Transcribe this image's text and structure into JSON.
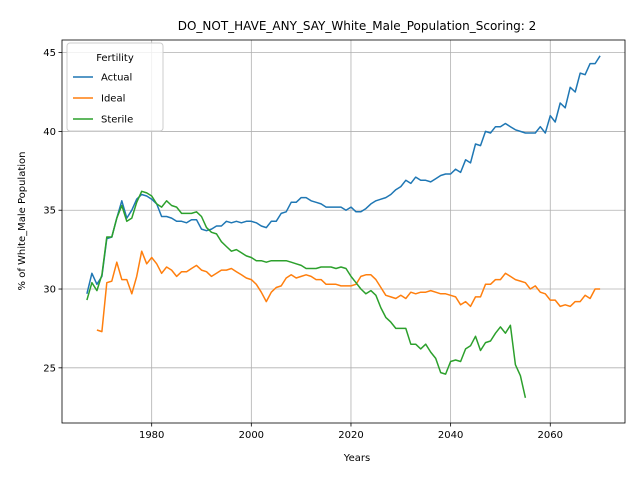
{
  "chart_data": {
    "type": "line",
    "title": "DO_NOT_HAVE_ANY_SAY_White_Male_Population_Scoring: 2",
    "xlabel": "Years",
    "ylabel": "% of White_Male Population",
    "xlim": [
      1962,
      2075
    ],
    "ylim": [
      21.5,
      45.8
    ],
    "xticks": [
      1980,
      2000,
      2020,
      2040,
      2060
    ],
    "yticks": [
      25,
      30,
      35,
      40,
      45
    ],
    "grid": true,
    "legend": {
      "title": "Fertility",
      "position": "top-left"
    },
    "series": [
      {
        "name": "Actual",
        "color": "#1f77b4",
        "points": [
          [
            1967,
            29.7
          ],
          [
            1968,
            31.0
          ],
          [
            1969,
            30.3
          ],
          [
            1970,
            30.8
          ],
          [
            1971,
            33.2
          ],
          [
            1972,
            33.3
          ],
          [
            1973,
            34.5
          ],
          [
            1974,
            35.6
          ],
          [
            1975,
            34.5
          ],
          [
            1976,
            35.0
          ],
          [
            1977,
            35.7
          ],
          [
            1978,
            36.0
          ],
          [
            1979,
            35.9
          ],
          [
            1980,
            35.7
          ],
          [
            1981,
            35.4
          ],
          [
            1982,
            34.6
          ],
          [
            1983,
            34.6
          ],
          [
            1984,
            34.5
          ],
          [
            1985,
            34.3
          ],
          [
            1986,
            34.3
          ],
          [
            1987,
            34.2
          ],
          [
            1988,
            34.4
          ],
          [
            1989,
            34.4
          ],
          [
            1990,
            33.8
          ],
          [
            1991,
            33.7
          ],
          [
            1992,
            33.8
          ],
          [
            1993,
            34.0
          ],
          [
            1994,
            34.0
          ],
          [
            1995,
            34.3
          ],
          [
            1996,
            34.2
          ],
          [
            1997,
            34.3
          ],
          [
            1998,
            34.2
          ],
          [
            1999,
            34.3
          ],
          [
            2000,
            34.3
          ],
          [
            2001,
            34.2
          ],
          [
            2002,
            34.0
          ],
          [
            2003,
            33.9
          ],
          [
            2004,
            34.3
          ],
          [
            2005,
            34.3
          ],
          [
            2006,
            34.8
          ],
          [
            2007,
            34.9
          ],
          [
            2008,
            35.5
          ],
          [
            2009,
            35.5
          ],
          [
            2010,
            35.8
          ],
          [
            2011,
            35.8
          ],
          [
            2012,
            35.6
          ],
          [
            2013,
            35.5
          ],
          [
            2014,
            35.4
          ],
          [
            2015,
            35.2
          ],
          [
            2016,
            35.2
          ],
          [
            2017,
            35.2
          ],
          [
            2018,
            35.2
          ],
          [
            2019,
            35.0
          ],
          [
            2020,
            35.2
          ],
          [
            2021,
            34.9
          ],
          [
            2022,
            34.9
          ],
          [
            2023,
            35.1
          ],
          [
            2024,
            35.4
          ],
          [
            2025,
            35.6
          ],
          [
            2026,
            35.7
          ],
          [
            2027,
            35.8
          ],
          [
            2028,
            36.0
          ],
          [
            2029,
            36.3
          ],
          [
            2030,
            36.5
          ],
          [
            2031,
            36.9
          ],
          [
            2032,
            36.7
          ],
          [
            2033,
            37.1
          ],
          [
            2034,
            36.9
          ],
          [
            2035,
            36.9
          ],
          [
            2036,
            36.8
          ],
          [
            2037,
            37.0
          ],
          [
            2038,
            37.2
          ],
          [
            2039,
            37.3
          ],
          [
            2040,
            37.3
          ],
          [
            2041,
            37.6
          ],
          [
            2042,
            37.4
          ],
          [
            2043,
            38.2
          ],
          [
            2044,
            38.0
          ],
          [
            2045,
            39.2
          ],
          [
            2046,
            39.1
          ],
          [
            2047,
            40.0
          ],
          [
            2048,
            39.9
          ],
          [
            2049,
            40.3
          ],
          [
            2050,
            40.3
          ],
          [
            2051,
            40.5
          ],
          [
            2052,
            40.3
          ],
          [
            2053,
            40.1
          ],
          [
            2054,
            40.0
          ],
          [
            2055,
            39.9
          ],
          [
            2056,
            39.9
          ],
          [
            2057,
            39.9
          ],
          [
            2058,
            40.3
          ],
          [
            2059,
            39.9
          ],
          [
            2060,
            41.0
          ],
          [
            2061,
            40.6
          ],
          [
            2062,
            41.8
          ],
          [
            2063,
            41.5
          ],
          [
            2064,
            42.8
          ],
          [
            2065,
            42.5
          ],
          [
            2066,
            43.7
          ],
          [
            2067,
            43.6
          ],
          [
            2068,
            44.3
          ],
          [
            2069,
            44.3
          ],
          [
            2070,
            44.8
          ]
        ]
      },
      {
        "name": "Ideal",
        "color": "#ff7f0e",
        "points": [
          [
            1969,
            27.4
          ],
          [
            1970,
            27.3
          ],
          [
            1971,
            30.4
          ],
          [
            1972,
            30.5
          ],
          [
            1973,
            31.7
          ],
          [
            1974,
            30.6
          ],
          [
            1975,
            30.6
          ],
          [
            1976,
            29.7
          ],
          [
            1977,
            30.8
          ],
          [
            1978,
            32.4
          ],
          [
            1979,
            31.6
          ],
          [
            1980,
            32.0
          ],
          [
            1981,
            31.6
          ],
          [
            1982,
            31.0
          ],
          [
            1983,
            31.4
          ],
          [
            1984,
            31.2
          ],
          [
            1985,
            30.8
          ],
          [
            1986,
            31.1
          ],
          [
            1987,
            31.1
          ],
          [
            1988,
            31.3
          ],
          [
            1989,
            31.5
          ],
          [
            1990,
            31.2
          ],
          [
            1991,
            31.1
          ],
          [
            1992,
            30.8
          ],
          [
            1993,
            31.0
          ],
          [
            1994,
            31.2
          ],
          [
            1995,
            31.2
          ],
          [
            1996,
            31.3
          ],
          [
            1997,
            31.1
          ],
          [
            1998,
            30.9
          ],
          [
            1999,
            30.7
          ],
          [
            2000,
            30.6
          ],
          [
            2001,
            30.3
          ],
          [
            2002,
            29.8
          ],
          [
            2003,
            29.2
          ],
          [
            2004,
            29.8
          ],
          [
            2005,
            30.1
          ],
          [
            2006,
            30.2
          ],
          [
            2007,
            30.7
          ],
          [
            2008,
            30.9
          ],
          [
            2009,
            30.7
          ],
          [
            2010,
            30.8
          ],
          [
            2011,
            30.9
          ],
          [
            2012,
            30.8
          ],
          [
            2013,
            30.6
          ],
          [
            2014,
            30.6
          ],
          [
            2015,
            30.3
          ],
          [
            2016,
            30.3
          ],
          [
            2017,
            30.3
          ],
          [
            2018,
            30.2
          ],
          [
            2019,
            30.2
          ],
          [
            2020,
            30.2
          ],
          [
            2021,
            30.3
          ],
          [
            2022,
            30.8
          ],
          [
            2023,
            30.9
          ],
          [
            2024,
            30.9
          ],
          [
            2025,
            30.6
          ],
          [
            2026,
            30.1
          ],
          [
            2027,
            29.6
          ],
          [
            2028,
            29.5
          ],
          [
            2029,
            29.4
          ],
          [
            2030,
            29.6
          ],
          [
            2031,
            29.4
          ],
          [
            2032,
            29.8
          ],
          [
            2033,
            29.7
          ],
          [
            2034,
            29.8
          ],
          [
            2035,
            29.8
          ],
          [
            2036,
            29.9
          ],
          [
            2037,
            29.8
          ],
          [
            2038,
            29.7
          ],
          [
            2039,
            29.7
          ],
          [
            2040,
            29.6
          ],
          [
            2041,
            29.5
          ],
          [
            2042,
            29.0
          ],
          [
            2043,
            29.2
          ],
          [
            2044,
            28.9
          ],
          [
            2045,
            29.5
          ],
          [
            2046,
            29.5
          ],
          [
            2047,
            30.3
          ],
          [
            2048,
            30.3
          ],
          [
            2049,
            30.6
          ],
          [
            2050,
            30.6
          ],
          [
            2051,
            31.0
          ],
          [
            2052,
            30.8
          ],
          [
            2053,
            30.6
          ],
          [
            2054,
            30.5
          ],
          [
            2055,
            30.4
          ],
          [
            2056,
            30.0
          ],
          [
            2057,
            30.2
          ],
          [
            2058,
            29.8
          ],
          [
            2059,
            29.7
          ],
          [
            2060,
            29.3
          ],
          [
            2061,
            29.3
          ],
          [
            2062,
            28.9
          ],
          [
            2063,
            29.0
          ],
          [
            2064,
            28.9
          ],
          [
            2065,
            29.2
          ],
          [
            2066,
            29.2
          ],
          [
            2067,
            29.6
          ],
          [
            2068,
            29.4
          ],
          [
            2069,
            30.0
          ],
          [
            2070,
            30.0
          ]
        ]
      },
      {
        "name": "Sterile",
        "color": "#2ca02c",
        "points": [
          [
            1967,
            29.3
          ],
          [
            1968,
            30.4
          ],
          [
            1969,
            29.9
          ],
          [
            1970,
            30.9
          ],
          [
            1971,
            33.3
          ],
          [
            1972,
            33.3
          ],
          [
            1973,
            34.5
          ],
          [
            1974,
            35.3
          ],
          [
            1975,
            34.3
          ],
          [
            1976,
            34.5
          ],
          [
            1977,
            35.5
          ],
          [
            1978,
            36.2
          ],
          [
            1979,
            36.1
          ],
          [
            1980,
            35.9
          ],
          [
            1981,
            35.4
          ],
          [
            1982,
            35.2
          ],
          [
            1983,
            35.6
          ],
          [
            1984,
            35.3
          ],
          [
            1985,
            35.2
          ],
          [
            1986,
            34.8
          ],
          [
            1987,
            34.8
          ],
          [
            1988,
            34.8
          ],
          [
            1989,
            34.9
          ],
          [
            1990,
            34.6
          ],
          [
            1991,
            33.9
          ],
          [
            1992,
            33.6
          ],
          [
            1993,
            33.5
          ],
          [
            1994,
            33.0
          ],
          [
            1995,
            32.7
          ],
          [
            1996,
            32.4
          ],
          [
            1997,
            32.5
          ],
          [
            1998,
            32.3
          ],
          [
            1999,
            32.1
          ],
          [
            2000,
            32.0
          ],
          [
            2001,
            31.8
          ],
          [
            2002,
            31.8
          ],
          [
            2003,
            31.7
          ],
          [
            2004,
            31.8
          ],
          [
            2005,
            31.8
          ],
          [
            2006,
            31.8
          ],
          [
            2007,
            31.8
          ],
          [
            2008,
            31.7
          ],
          [
            2009,
            31.6
          ],
          [
            2010,
            31.5
          ],
          [
            2011,
            31.3
          ],
          [
            2012,
            31.3
          ],
          [
            2013,
            31.3
          ],
          [
            2014,
            31.4
          ],
          [
            2015,
            31.4
          ],
          [
            2016,
            31.4
          ],
          [
            2017,
            31.3
          ],
          [
            2018,
            31.4
          ],
          [
            2019,
            31.3
          ],
          [
            2020,
            30.8
          ],
          [
            2021,
            30.4
          ],
          [
            2022,
            30.0
          ],
          [
            2023,
            29.7
          ],
          [
            2024,
            29.9
          ],
          [
            2025,
            29.6
          ],
          [
            2026,
            28.8
          ],
          [
            2027,
            28.2
          ],
          [
            2028,
            27.9
          ],
          [
            2029,
            27.5
          ],
          [
            2030,
            27.5
          ],
          [
            2031,
            27.5
          ],
          [
            2032,
            26.5
          ],
          [
            2033,
            26.5
          ],
          [
            2034,
            26.2
          ],
          [
            2035,
            26.5
          ],
          [
            2036,
            26.0
          ],
          [
            2037,
            25.6
          ],
          [
            2038,
            24.7
          ],
          [
            2039,
            24.6
          ],
          [
            2040,
            25.4
          ],
          [
            2041,
            25.5
          ],
          [
            2042,
            25.4
          ],
          [
            2043,
            26.2
          ],
          [
            2044,
            26.4
          ],
          [
            2045,
            27.0
          ],
          [
            2046,
            26.1
          ],
          [
            2047,
            26.6
          ],
          [
            2048,
            26.7
          ],
          [
            2049,
            27.2
          ],
          [
            2050,
            27.6
          ],
          [
            2051,
            27.2
          ],
          [
            2052,
            27.7
          ],
          [
            2053,
            25.2
          ],
          [
            2054,
            24.5
          ],
          [
            2055,
            23.1
          ]
        ]
      }
    ]
  }
}
